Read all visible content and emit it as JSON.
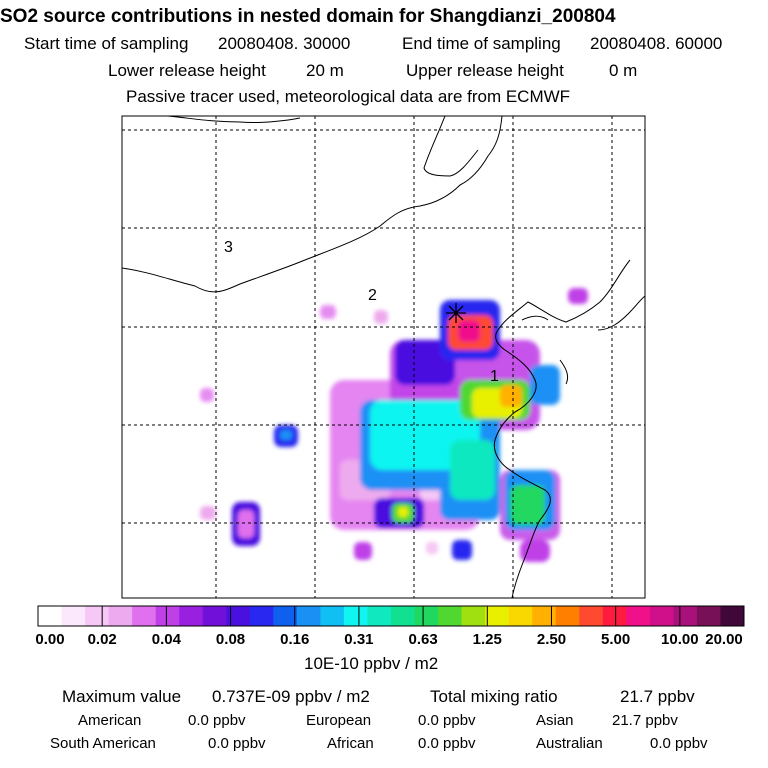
{
  "header": {
    "title": "SO2 source contributions in nested domain for Shangdianzi_200804",
    "start_label": "Start time of sampling",
    "start_value": "20080408. 30000",
    "end_label": "End time of sampling",
    "end_value": "20080408. 60000",
    "lower_label": "Lower release height",
    "lower_value": "20 m",
    "upper_label": "Upper release height",
    "upper_value": "0 m",
    "note": "Passive tracer used, meteorological data are from ECMWF"
  },
  "map": {
    "region_labels": [
      "1",
      "2",
      "3"
    ],
    "receptor_marker": "star-icon"
  },
  "colorbar": {
    "colors": [
      "#ffffff",
      "#fce8fc",
      "#f5c8f5",
      "#eeaaee",
      "#e070ee",
      "#c040e8",
      "#9a20e0",
      "#7010d8",
      "#4a10e0",
      "#2828f0",
      "#1060f0",
      "#1a90f5",
      "#10c0f5",
      "#10f5f0",
      "#10e8c0",
      "#10e090",
      "#20d860",
      "#50d830",
      "#a0e010",
      "#e8f000",
      "#f8d800",
      "#ffb000",
      "#ff8000",
      "#ff4a30",
      "#ff1a40",
      "#f0108a",
      "#d0108a",
      "#a8107a",
      "#781058",
      "#400838"
    ],
    "tick_labels": [
      "0.00",
      "0.02",
      "0.04",
      "0.08",
      "0.16",
      "0.31",
      "0.63",
      "1.25",
      "2.50",
      "5.00",
      "10.00",
      "20.00"
    ],
    "unit": "10E-10 ppbv / m2"
  },
  "summary": {
    "max_label": "Maximum value",
    "max_value": "0.737E-09 ppbv / m2",
    "total_label": "Total mixing ratio",
    "total_value": "21.7 ppbv",
    "regions": [
      {
        "name": "American",
        "value": "0.0 ppbv"
      },
      {
        "name": "European",
        "value": "0.0 ppbv"
      },
      {
        "name": "Asian",
        "value": "21.7 ppbv"
      },
      {
        "name": "South American",
        "value": "0.0 ppbv"
      },
      {
        "name": "African",
        "value": "0.0 ppbv"
      },
      {
        "name": "Australian",
        "value": "0.0 ppbv"
      }
    ]
  }
}
